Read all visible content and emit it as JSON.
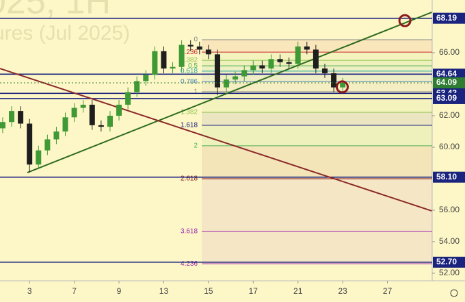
{
  "chart_data": {
    "type": "candlestick",
    "title": "025, 1H",
    "subtitle": "ures (Jul 2025)",
    "x": [
      -6,
      -4,
      -2,
      0,
      2,
      4,
      6,
      8,
      10,
      12,
      14,
      16,
      18,
      20,
      22,
      24,
      26,
      28,
      30,
      32,
      34,
      36,
      38,
      40,
      42,
      44,
      46,
      48,
      50,
      52,
      54,
      56,
      58,
      60,
      62,
      64,
      66,
      68,
      70
    ],
    "open": [
      61.2,
      61.6,
      62.3,
      61.5,
      58.9,
      59.8,
      60.5,
      61.0,
      61.9,
      62.5,
      62.7,
      61.4,
      61.3,
      62.0,
      62.7,
      63.5,
      64.2,
      64.6,
      66.1,
      65.0,
      65.1,
      66.5,
      66.4,
      66.2,
      65.9,
      63.8,
      64.3,
      64.5,
      64.9,
      65.2,
      65.0,
      65.6,
      65.4,
      65.3,
      66.4,
      66.2,
      65.0,
      64.7,
      63.8
    ],
    "high": [
      61.9,
      62.6,
      62.6,
      61.8,
      60.1,
      60.8,
      61.3,
      62.2,
      62.8,
      63.0,
      63.0,
      61.7,
      62.3,
      63.0,
      63.8,
      64.5,
      64.9,
      66.4,
      66.4,
      65.4,
      66.8,
      66.8,
      66.7,
      66.5,
      66.2,
      64.6,
      64.8,
      65.2,
      65.5,
      65.5,
      65.9,
      65.9,
      65.7,
      66.7,
      66.7,
      66.5,
      65.3,
      65.0,
      64.4
    ],
    "low": [
      60.9,
      61.3,
      61.2,
      58.4,
      58.6,
      59.5,
      60.2,
      60.7,
      61.6,
      62.2,
      61.1,
      61.0,
      61.0,
      61.7,
      62.4,
      63.2,
      63.9,
      64.3,
      64.7,
      64.7,
      64.8,
      66.1,
      65.9,
      65.6,
      63.3,
      63.5,
      64.0,
      64.2,
      64.6,
      64.7,
      64.7,
      65.1,
      65.0,
      65.0,
      65.9,
      64.7,
      64.4,
      63.5,
      63.5
    ],
    "close": [
      61.6,
      62.3,
      61.5,
      58.9,
      59.8,
      60.5,
      61.0,
      61.9,
      62.5,
      62.7,
      61.4,
      61.3,
      62.0,
      62.7,
      63.5,
      64.2,
      64.6,
      66.1,
      65.0,
      65.1,
      66.5,
      66.4,
      66.2,
      65.9,
      63.8,
      64.3,
      64.5,
      64.9,
      65.2,
      65.0,
      65.6,
      65.4,
      65.3,
      66.4,
      66.2,
      65.0,
      64.7,
      63.8,
      64.1
    ],
    "up_color": "#3f9a35",
    "down_color": "#1e1e1e",
    "xlim": [
      -6.6,
      90
    ],
    "xticks": [
      {
        "value": 0,
        "label": "3"
      },
      {
        "value": 10,
        "label": "7"
      },
      {
        "value": 20,
        "label": "9"
      },
      {
        "value": 30,
        "label": "13"
      },
      {
        "value": 40,
        "label": "15"
      },
      {
        "value": 50,
        "label": "17"
      },
      {
        "value": 60,
        "label": "21"
      },
      {
        "value": 70,
        "label": "23"
      },
      {
        "value": 80,
        "label": "27"
      }
    ],
    "ylim": [
      51.52,
      69.35
    ],
    "yticks": [
      {
        "value": 52,
        "label": "52.00"
      },
      {
        "value": 54,
        "label": "54.00"
      },
      {
        "value": 56,
        "label": "56.00"
      },
      {
        "value": 60,
        "label": "60.00"
      },
      {
        "value": 62,
        "label": "62.00"
      },
      {
        "value": 66,
        "label": "66.00"
      }
    ],
    "grid": false,
    "levels": {
      "values": [
        68.19,
        64.64,
        63.42,
        63.09,
        58.1,
        52.7
      ],
      "value_labels": [
        "68.19",
        "64.64",
        "63.42",
        "63.09",
        "58.10",
        "52.70"
      ],
      "color": "#1a237e"
    },
    "last_price": {
      "value": 64.09,
      "color": "#2e7d32"
    },
    "fib": {
      "x_start": 38.5,
      "levels": [
        0,
        0.236,
        0.382,
        0.5,
        0.618,
        0.786,
        1,
        1.382,
        1.618,
        2,
        2.618,
        3.618,
        4.236
      ],
      "prices": [
        66.83,
        66.04,
        65.52,
        65.17,
        64.83,
        64.17,
        63.52,
        62.22,
        61.39,
        60.09,
        58.0,
        54.65,
        52.6
      ],
      "colors": [
        "#888888",
        "#c62828",
        "#8bc34a",
        "#4caf50",
        "#26a69a",
        "#4682b4",
        "#888888",
        "#8bc34a",
        "#1a237e",
        "#4caf50",
        "#8b1a1a",
        "#9c27b0",
        "#9c27b0"
      ]
    },
    "trendlines": [
      {
        "x": [
          -0.5,
          89.9
        ],
        "y": [
          58.39,
          68.57
        ],
        "color": "#2e6b1f"
      },
      {
        "x": [
          -6.6,
          89.9
        ],
        "y": [
          65.0,
          55.96
        ],
        "color": "#8b2a2a"
      }
    ],
    "markers": {
      "x": [
        83.9,
        69.9
      ],
      "y": [
        68.04,
        63.83
      ],
      "color": "#8b1a1a"
    }
  }
}
